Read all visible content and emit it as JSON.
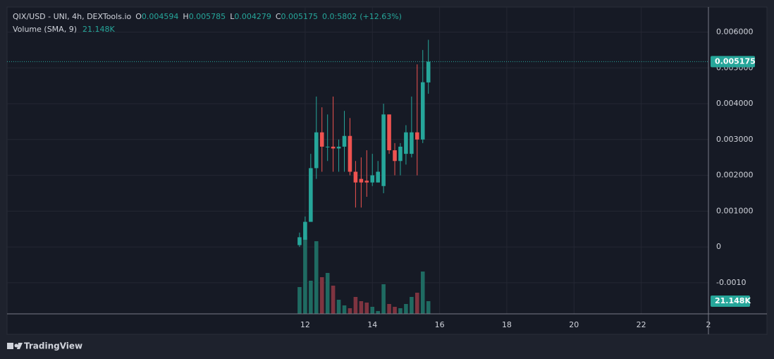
{
  "header": {
    "symbol": "QIX/USD - UNI, 4h, DEXTools.io",
    "ohlc": [
      {
        "label": "O",
        "value": 0.004594
      },
      {
        "label": "H",
        "value": 0.005785
      },
      {
        "label": "L",
        "value": 0.004279
      },
      {
        "label": "C",
        "value": 0.005175
      }
    ],
    "change": "0.0:5802",
    "change_pct": "(+12.63%)",
    "volume_label": "Volume (SMA, 9)",
    "volume_value": "21.148K"
  },
  "chart_data": {
    "type": "candlestick",
    "x": [
      11.833,
      12.0,
      12.167,
      12.333,
      12.5,
      12.667,
      12.833,
      13.0,
      13.167,
      13.333,
      13.5,
      13.667,
      13.833,
      14.0,
      14.167,
      14.333,
      14.5,
      14.667,
      14.833,
      15.0,
      15.167,
      15.333,
      15.5,
      15.667
    ],
    "series": [
      {
        "name": "QIX/USD",
        "up_color": "#26a69a",
        "down_color": "#ef5350",
        "open": [
          5e-05,
          0.0002,
          0.0007,
          0.0022,
          0.0032,
          0.0028,
          0.0028,
          0.00275,
          0.0028,
          0.0031,
          0.0021,
          0.0019,
          0.00185,
          0.0018,
          0.0018,
          0.0017,
          0.0037,
          0.0027,
          0.0024,
          0.0026,
          0.0026,
          0.0032,
          0.003,
          0.004594
        ],
        "high": [
          0.0004,
          0.00085,
          0.0026,
          0.0042,
          0.0039,
          0.0037,
          0.0042,
          0.003,
          0.0038,
          0.0036,
          0.0024,
          0.0025,
          0.0027,
          0.0026,
          0.0024,
          0.004,
          0.0037,
          0.0029,
          0.0029,
          0.0034,
          0.0042,
          0.0051,
          0.0055,
          0.005785
        ],
        "low": [
          0.0,
          0.0002,
          0.0007,
          0.0019,
          0.0021,
          0.0024,
          0.0021,
          0.0021,
          0.0021,
          0.002,
          0.0011,
          0.0011,
          0.0014,
          0.0017,
          0.0018,
          0.0015,
          0.0026,
          0.002,
          0.002,
          0.0023,
          0.0025,
          0.002,
          0.0029,
          0.004279
        ],
        "close": [
          0.00027,
          0.0007,
          0.0022,
          0.0032,
          0.0028,
          0.0028,
          0.00275,
          0.0028,
          0.0031,
          0.0021,
          0.0018,
          0.0018,
          0.0018,
          0.002,
          0.0021,
          0.0037,
          0.0027,
          0.0024,
          0.0028,
          0.0032,
          0.0032,
          0.003,
          0.0046,
          0.005175
        ]
      },
      {
        "name": "Volume",
        "axis": "volume",
        "up_color": "#1f6b62",
        "down_color": "#7f3440",
        "values": [
          44650,
          129250,
          55225,
          121025,
          61100,
          68150,
          47000,
          23500,
          14100,
          9400,
          28200,
          21150,
          18800,
          11750,
          4700,
          49350,
          16450,
          11750,
          9400,
          16450,
          28200,
          35250,
          70500,
          21150
        ]
      }
    ],
    "last_price": 0.005175,
    "volume_sma": 21148,
    "volume_sma_label": "21.148K",
    "xlim": [
      3.13,
      24.0
    ],
    "xticks": [
      12,
      14,
      16,
      18,
      20,
      22,
      {
        "value": 24,
        "label": "2"
      }
    ],
    "ylim": [
      -0.00187,
      0.0067
    ],
    "yticks": [
      {
        "value": 0.006,
        "label": "0.006000"
      },
      {
        "value": 0.005,
        "label": "0.005000"
      },
      {
        "value": 0.004,
        "label": "0.004000"
      },
      {
        "value": 0.003,
        "label": "0.003000"
      },
      {
        "value": 0.002,
        "label": "0.002000"
      },
      {
        "value": 0.001,
        "label": "0.001000"
      },
      0,
      {
        "value": -0.001,
        "label": "-0.0010"
      }
    ],
    "vlim": [
      0,
      511000
    ],
    "grid": true
  },
  "footer": {
    "brand": "TradingView"
  }
}
